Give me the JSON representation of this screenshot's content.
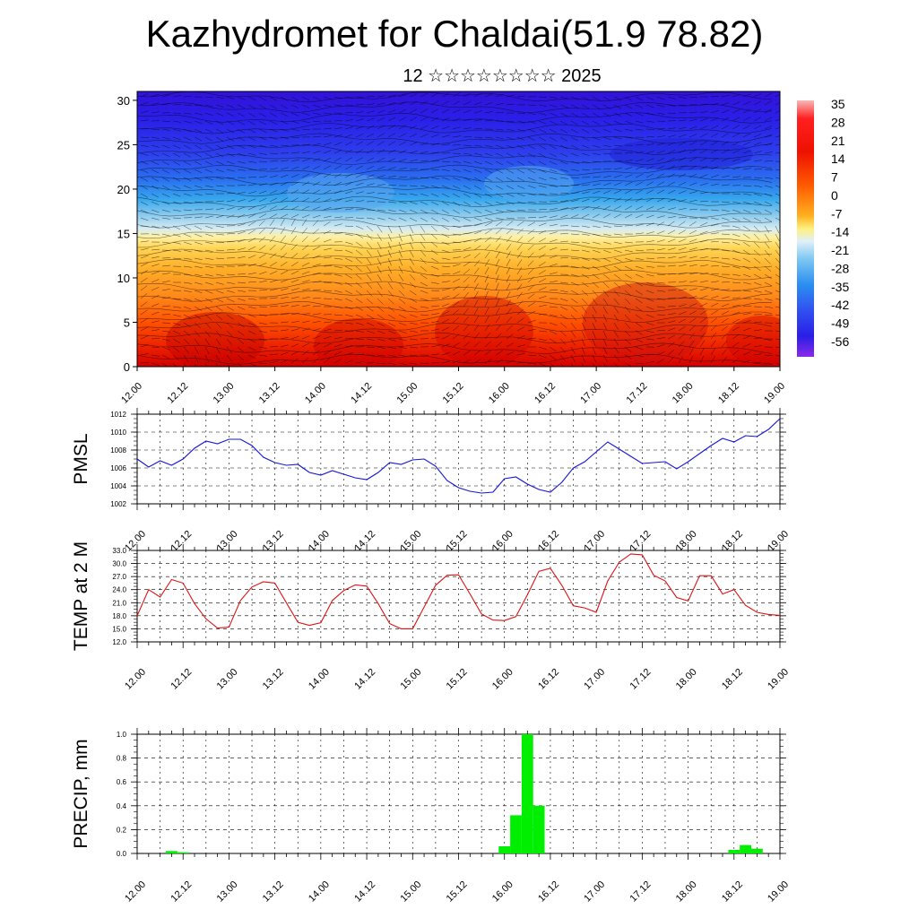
{
  "header": {
    "title": "Kazhydromet for Chaldai(51.9 78.82)",
    "subtitle": "12 ☆☆☆☆☆☆☆☆ 2025"
  },
  "time_axis_labels": [
    "12.00",
    "12.12",
    "13.00",
    "13.12",
    "14.00",
    "14.12",
    "15.00",
    "15.12",
    "16.00",
    "16.12",
    "17.00",
    "17.12",
    "18.00",
    "18.12",
    "19.00"
  ],
  "colors": {
    "pmsl_line": "#1414d8",
    "temp_line": "#dc1414",
    "precip_bar": "#00ee00"
  },
  "chart_data": [
    {
      "type": "heatmap",
      "name": "temperature-cross-section",
      "x": [
        "12.00",
        "12.12",
        "13.00",
        "13.12",
        "14.00",
        "14.12",
        "15.00",
        "15.12",
        "16.00",
        "16.12",
        "17.00",
        "17.12",
        "18.00",
        "18.12",
        "19.00"
      ],
      "y_ticks": [
        0,
        5,
        10,
        15,
        20,
        25,
        30
      ],
      "ylim": [
        0,
        31
      ],
      "colorbar": {
        "labels": [
          "35",
          "28",
          "21",
          "14",
          "7",
          "0",
          "-7",
          "-14",
          "-21",
          "-28",
          "-35",
          "-42",
          "-49",
          "-56"
        ]
      },
      "overlay": "wind barbs and contour lines"
    },
    {
      "type": "line",
      "ylabel": "PMSL",
      "ylim": [
        1002,
        1012
      ],
      "y_ticks": [
        "1002",
        "1004",
        "1006",
        "1008",
        "1010",
        "1012"
      ],
      "x_step_hours": 3,
      "values": [
        1007.0,
        1006.1,
        1006.8,
        1006.3,
        1007.0,
        1008.2,
        1009.0,
        1008.7,
        1009.2,
        1009.2,
        1008.5,
        1007.2,
        1006.6,
        1006.3,
        1006.4,
        1005.5,
        1005.2,
        1005.7,
        1005.3,
        1004.9,
        1004.7,
        1005.5,
        1006.6,
        1006.4,
        1006.9,
        1007.0,
        1006.2,
        1004.6,
        1003.8,
        1003.4,
        1003.2,
        1003.3,
        1004.8,
        1005.0,
        1004.2,
        1003.6,
        1003.3,
        1004.4,
        1006.0,
        1006.7,
        1007.8,
        1008.9,
        1008.1,
        1007.3,
        1006.5,
        1006.6,
        1006.7,
        1005.9,
        1006.7,
        1007.6,
        1008.5,
        1009.3,
        1008.9,
        1009.6,
        1009.5,
        1010.3,
        1011.5
      ]
    },
    {
      "type": "line",
      "ylabel": "TEMP at 2 M",
      "ylim": [
        12,
        33
      ],
      "y_ticks": [
        "12.0",
        "15.0",
        "18.0",
        "21.0",
        "24.0",
        "27.0",
        "30.0",
        "33.0"
      ],
      "x_step_hours": 3,
      "values": [
        18.0,
        24.0,
        22.3,
        26.3,
        25.5,
        20.8,
        17.3,
        15.2,
        15.4,
        21.5,
        24.6,
        25.8,
        25.5,
        21.0,
        16.5,
        15.8,
        16.4,
        21.5,
        23.8,
        25.1,
        24.8,
        20.8,
        16.2,
        15.0,
        15.0,
        20.0,
        25.0,
        27.3,
        27.4,
        23.0,
        18.4,
        17.0,
        16.9,
        17.8,
        22.8,
        28.2,
        28.9,
        25.0,
        20.3,
        19.8,
        18.8,
        26.0,
        30.3,
        32.2,
        32.0,
        27.3,
        26.0,
        22.2,
        21.4,
        27.2,
        27.2,
        23.0,
        24.0,
        20.4,
        18.8,
        18.3,
        18.1
      ]
    },
    {
      "type": "bar",
      "ylabel": "PRECIP, mm",
      "ylim": [
        0,
        1
      ],
      "y_ticks": [
        "0.0",
        "0.2",
        "0.4",
        "0.6",
        "0.8",
        "1.0"
      ],
      "x_step_hours": 3,
      "values": [
        0,
        0,
        0,
        0.02,
        0.01,
        0,
        0,
        0,
        0,
        0,
        0,
        0,
        0,
        0,
        0,
        0,
        0,
        0,
        0,
        0,
        0,
        0,
        0,
        0,
        0,
        0,
        0,
        0,
        0,
        0,
        0,
        0,
        0.06,
        0.32,
        1.0,
        0.4,
        0,
        0,
        0,
        0,
        0,
        0,
        0,
        0,
        0,
        0,
        0,
        0,
        0,
        0,
        0,
        0,
        0.03,
        0.07,
        0.04,
        0,
        0
      ]
    }
  ]
}
